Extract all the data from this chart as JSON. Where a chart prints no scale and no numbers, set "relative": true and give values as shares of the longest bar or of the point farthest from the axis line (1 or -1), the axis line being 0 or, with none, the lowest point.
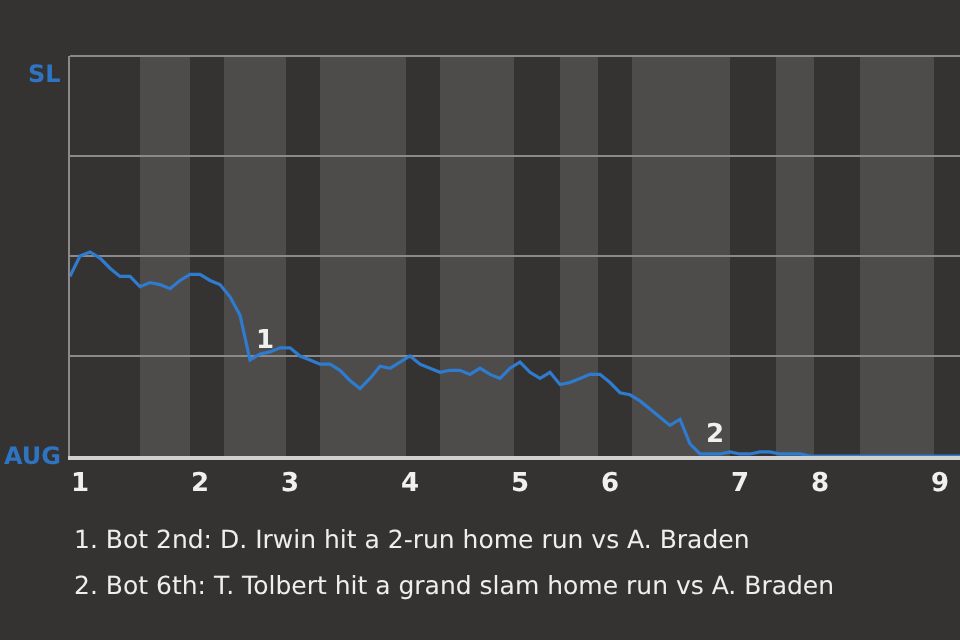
{
  "chart_data": {
    "type": "line",
    "relative": true,
    "categories": [
      null,
      "1",
      null,
      null,
      null,
      null,
      null,
      null,
      null,
      null,
      null,
      null,
      null,
      "2",
      null,
      null,
      null,
      null,
      null,
      null,
      null,
      null,
      "3",
      null,
      null,
      null,
      null,
      null,
      null,
      null,
      null,
      null,
      null,
      null,
      "4",
      null,
      null,
      null,
      null,
      null,
      null,
      null,
      null,
      null,
      null,
      "5",
      null,
      null,
      null,
      null,
      null,
      null,
      null,
      null,
      "6",
      null,
      null,
      null,
      null,
      null,
      null,
      null,
      null,
      null,
      null,
      null,
      null,
      "7",
      null,
      null,
      null,
      null,
      null,
      null,
      null,
      "8",
      null,
      null,
      null,
      null,
      null,
      null,
      null,
      null,
      null,
      null,
      null,
      "9",
      null,
      null
    ],
    "series": [
      {
        "color": "#2e7bcf",
        "values": [
          0.88,
          0.98,
          1,
          0.97,
          0.92,
          0.88,
          0.88,
          0.83,
          0.85,
          0.84,
          0.82,
          0.86,
          0.89,
          0.89,
          0.86,
          0.84,
          0.78,
          0.69,
          0.47,
          0.5,
          0.51,
          0.53,
          0.53,
          0.49,
          0.47,
          0.45,
          0.45,
          0.42,
          0.37,
          0.33,
          0.38,
          0.44,
          0.43,
          0.46,
          0.49,
          0.45,
          0.43,
          0.41,
          0.42,
          0.42,
          0.4,
          0.43,
          0.4,
          0.38,
          0.43,
          0.46,
          0.41,
          0.38,
          0.41,
          0.35,
          0.36,
          0.38,
          0.4,
          0.4,
          0.36,
          0.31,
          0.3,
          0.27,
          0.23,
          0.19,
          0.15,
          0.18,
          0.06,
          0.01,
          0.01,
          0.01,
          0.02,
          0.01,
          0.01,
          0.02,
          0.02,
          0.01,
          0.01,
          0.01,
          0,
          0,
          0,
          0,
          0,
          0,
          0,
          0,
          0,
          0,
          0,
          0,
          0,
          0,
          0,
          0
        ]
      }
    ],
    "ref_lines": [
      {
        "axis": "y",
        "value": 0.49,
        "color": "#8a8a8a"
      }
    ],
    "marker": "none",
    "line_style": "solid",
    "annotations": [
      "SL",
      "AUG",
      {
        "text": "1",
        "y": 0.47
      },
      {
        "text": "2",
        "y": 0.01
      },
      "1. Bot 2nd: D. Irwin hit a 2-run home run vs A. Braden",
      "2. Bot 6th: T. Tolbert hit a grand slam home run vs A. Braden"
    ]
  }
}
